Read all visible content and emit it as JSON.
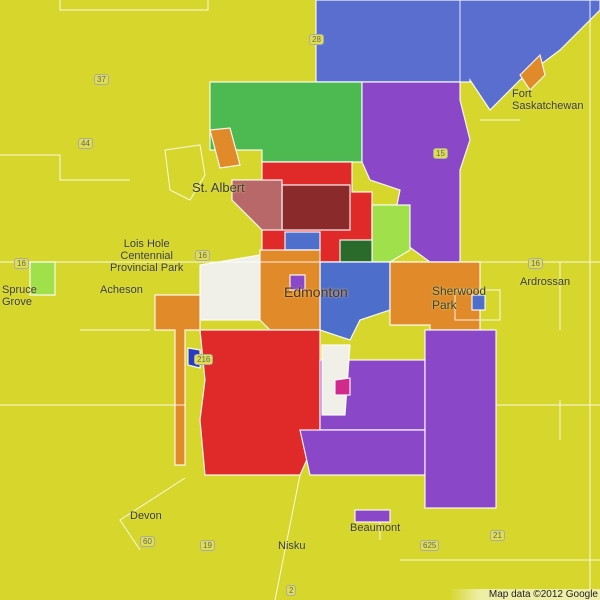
{
  "map": {
    "base_color": "#d6d62c",
    "places": [
      {
        "name": "Spruce Grove",
        "line1": "Spruce",
        "line2": "Grove"
      },
      {
        "name": "Acheson"
      },
      {
        "name": "St. Albert",
        "text": "St. Albert"
      },
      {
        "name": "Lois Hole Centennial Provincial Park",
        "line1": "Lois Hole",
        "line2": "Centennial",
        "line3": "Provincial Park"
      },
      {
        "name": "Edmonton"
      },
      {
        "name": "Sherwood Park",
        "line1": "Sherwood",
        "line2": "Park"
      },
      {
        "name": "Ardrossan"
      },
      {
        "name": "Fort Saskatchewan",
        "line1": "Fort",
        "line2": "Saskatchewan"
      },
      {
        "name": "Devon"
      },
      {
        "name": "Nisku"
      },
      {
        "name": "Beaumont"
      }
    ],
    "highways": [
      "37",
      "28",
      "44",
      "15",
      "16",
      "16",
      "216",
      "21",
      "625",
      "19",
      "60",
      "2",
      "16"
    ],
    "attribution": "Map data ©2012 Google",
    "region_colors": {
      "red": "#e0262a",
      "orange": "#e08a2a",
      "purple": "#8a44c8",
      "blue": "#4e6ecc",
      "green": "#46b84c",
      "lightgreen": "#9ee04a",
      "darkred": "#8a2828",
      "rose": "#b86868",
      "white": "#f0f0e8",
      "gray": "#6a6a6a",
      "darkgreen": "#2a6a2a",
      "magenta": "#d02a8a"
    }
  }
}
